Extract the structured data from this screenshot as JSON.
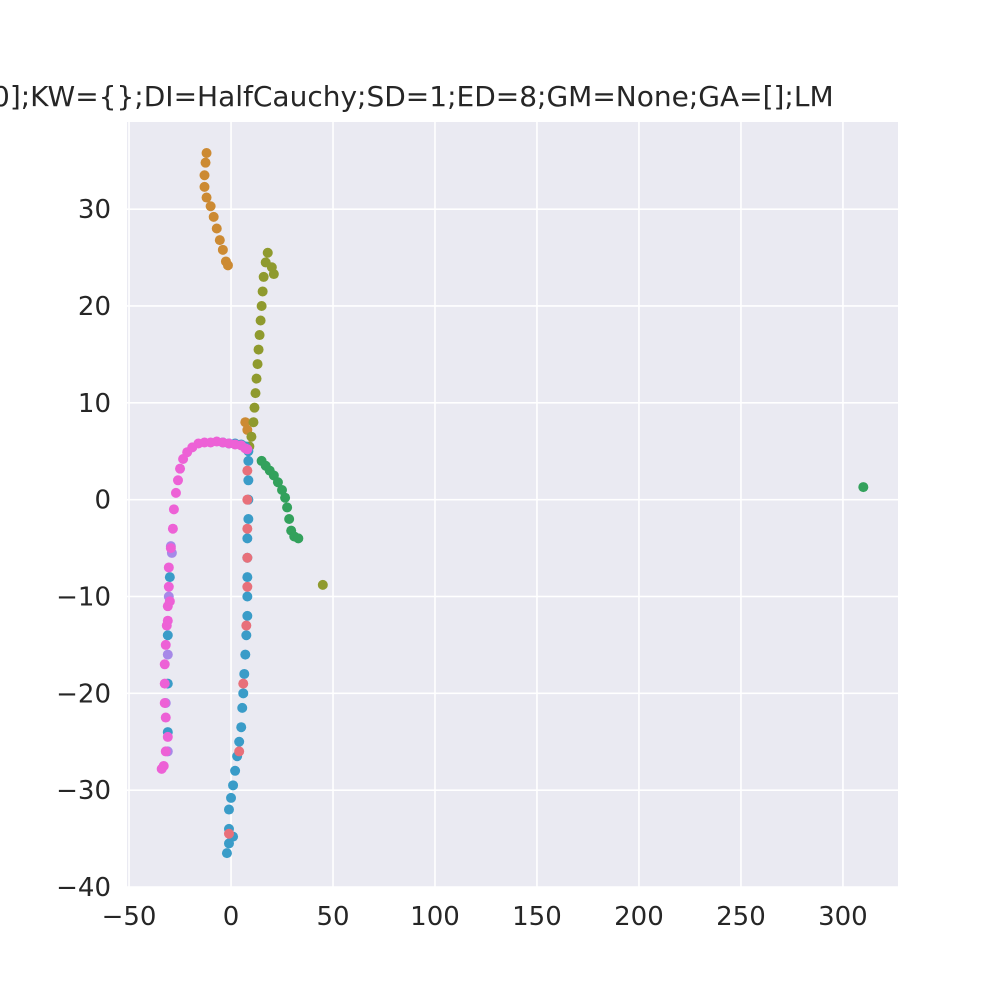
{
  "chart_data": {
    "type": "scatter",
    "title": "0];KW={};DI=HalfCauchy;SD=1;ED=8;GM=None;GA=[];LM",
    "xlabel": "",
    "ylabel": "",
    "xlim": [
      -51,
      327
    ],
    "ylim": [
      -40,
      39
    ],
    "xticks": [
      -50,
      0,
      50,
      100,
      150,
      200,
      250,
      300
    ],
    "yticks": [
      -40,
      -30,
      -20,
      -10,
      0,
      10,
      20,
      30
    ],
    "xtick_labels": [
      "−50",
      "0",
      "50",
      "100",
      "150",
      "200",
      "250",
      "300"
    ],
    "ytick_labels": [
      "−40",
      "−30",
      "−20",
      "−10",
      "0",
      "10",
      "20",
      "30"
    ],
    "grid": true,
    "background": "#eaeaf2",
    "series": [
      {
        "color": "#cc8a33",
        "points": [
          [
            -12,
            35.8
          ],
          [
            -12.5,
            34.8
          ],
          [
            -13,
            33.5
          ],
          [
            -13,
            32.3
          ],
          [
            -12,
            31.2
          ],
          [
            -10,
            30.3
          ],
          [
            -8.5,
            29.2
          ],
          [
            -7,
            28
          ],
          [
            -5.5,
            26.8
          ],
          [
            -4,
            25.8
          ],
          [
            -2.5,
            24.6
          ],
          [
            -1.5,
            24.2
          ],
          [
            7,
            8
          ],
          [
            8,
            7.2
          ]
        ]
      },
      {
        "color": "#8f9a2e",
        "points": [
          [
            18,
            25.5
          ],
          [
            17,
            24.5
          ],
          [
            16,
            23
          ],
          [
            15.5,
            21.5
          ],
          [
            15,
            20
          ],
          [
            14.5,
            18.5
          ],
          [
            14,
            17
          ],
          [
            13.5,
            15.5
          ],
          [
            13,
            14
          ],
          [
            12.5,
            12.5
          ],
          [
            12,
            11
          ],
          [
            11.5,
            9.5
          ],
          [
            11,
            8
          ],
          [
            10,
            6.5
          ],
          [
            9,
            5.5
          ],
          [
            20,
            24
          ],
          [
            21,
            23.3
          ],
          [
            45,
            -8.8
          ]
        ]
      },
      {
        "color": "#33a15c",
        "points": [
          [
            15,
            4
          ],
          [
            17,
            3.5
          ],
          [
            19,
            3
          ],
          [
            21,
            2.5
          ],
          [
            23,
            1.8
          ],
          [
            25,
            1
          ],
          [
            26.5,
            0.2
          ],
          [
            27.5,
            -0.8
          ],
          [
            28.5,
            -2
          ],
          [
            29.5,
            -3.2
          ],
          [
            31,
            -3.8
          ],
          [
            33,
            -4
          ],
          [
            310,
            1.3
          ]
        ]
      },
      {
        "color": "#3a9cc8",
        "points": [
          [
            -2,
            -36.5
          ],
          [
            -1,
            -35.5
          ],
          [
            1,
            -34.8
          ],
          [
            -1,
            -34
          ],
          [
            -1,
            -32
          ],
          [
            0,
            -30.8
          ],
          [
            1,
            -29.5
          ],
          [
            2,
            -28
          ],
          [
            3,
            -26.5
          ],
          [
            4,
            -25
          ],
          [
            5,
            -23.5
          ],
          [
            5.5,
            -21.5
          ],
          [
            6,
            -20
          ],
          [
            6.5,
            -18
          ],
          [
            7,
            -16
          ],
          [
            7.5,
            -14
          ],
          [
            8,
            -12
          ],
          [
            8,
            -10
          ],
          [
            8,
            -8
          ],
          [
            8,
            -6
          ],
          [
            8,
            -4
          ],
          [
            8.5,
            -2
          ],
          [
            8.5,
            0
          ],
          [
            8.5,
            2
          ],
          [
            8.5,
            4
          ],
          [
            8.5,
            5
          ],
          [
            7,
            5.5
          ],
          [
            5,
            5.7
          ],
          [
            2,
            5.8
          ],
          [
            -1,
            5.8
          ],
          [
            -4,
            5.9
          ],
          [
            -31,
            -24
          ],
          [
            -31,
            -19
          ],
          [
            -31,
            -14
          ],
          [
            -30,
            -8
          ]
        ]
      },
      {
        "color": "#e8707a",
        "points": [
          [
            4,
            -26
          ],
          [
            6,
            -19
          ],
          [
            7.5,
            -13
          ],
          [
            8,
            -9
          ],
          [
            8,
            -6
          ],
          [
            8,
            -3
          ],
          [
            8,
            0
          ],
          [
            8,
            3
          ],
          [
            -1,
            -34.5
          ]
        ]
      },
      {
        "color": "#a689e8",
        "points": [
          [
            -29,
            -5.5
          ],
          [
            -29.5,
            -4.8
          ],
          [
            -30.5,
            -10
          ],
          [
            -31,
            -16
          ],
          [
            -32,
            -21
          ],
          [
            -31,
            -26
          ]
        ]
      },
      {
        "color": "#ed61d6",
        "points": [
          [
            -34,
            -27.8
          ],
          [
            -33,
            -27.5
          ],
          [
            -32,
            -26
          ],
          [
            -31,
            -24.5
          ],
          [
            -32,
            -22.5
          ],
          [
            -32.5,
            -21
          ],
          [
            -32.5,
            -19
          ],
          [
            -32.5,
            -17
          ],
          [
            -32,
            -15
          ],
          [
            -31.5,
            -13
          ],
          [
            -31,
            -11
          ],
          [
            -30.5,
            -9
          ],
          [
            -30.5,
            -7
          ],
          [
            -29.5,
            -5
          ],
          [
            -28.5,
            -3
          ],
          [
            -28,
            -1
          ],
          [
            -27,
            0.7
          ],
          [
            -26,
            2
          ],
          [
            -25,
            3.2
          ],
          [
            -23.5,
            4.2
          ],
          [
            -21.5,
            4.9
          ],
          [
            -19,
            5.4
          ],
          [
            -16,
            5.8
          ],
          [
            -13,
            5.9
          ],
          [
            -10,
            5.9
          ],
          [
            -7,
            6
          ],
          [
            -4,
            5.9
          ],
          [
            -1,
            5.8
          ],
          [
            2,
            5.7
          ],
          [
            5,
            5.6
          ],
          [
            7,
            5.3
          ],
          [
            8,
            5.2
          ],
          [
            -31,
            -12.5
          ],
          [
            -30,
            -10.5
          ]
        ]
      }
    ]
  }
}
